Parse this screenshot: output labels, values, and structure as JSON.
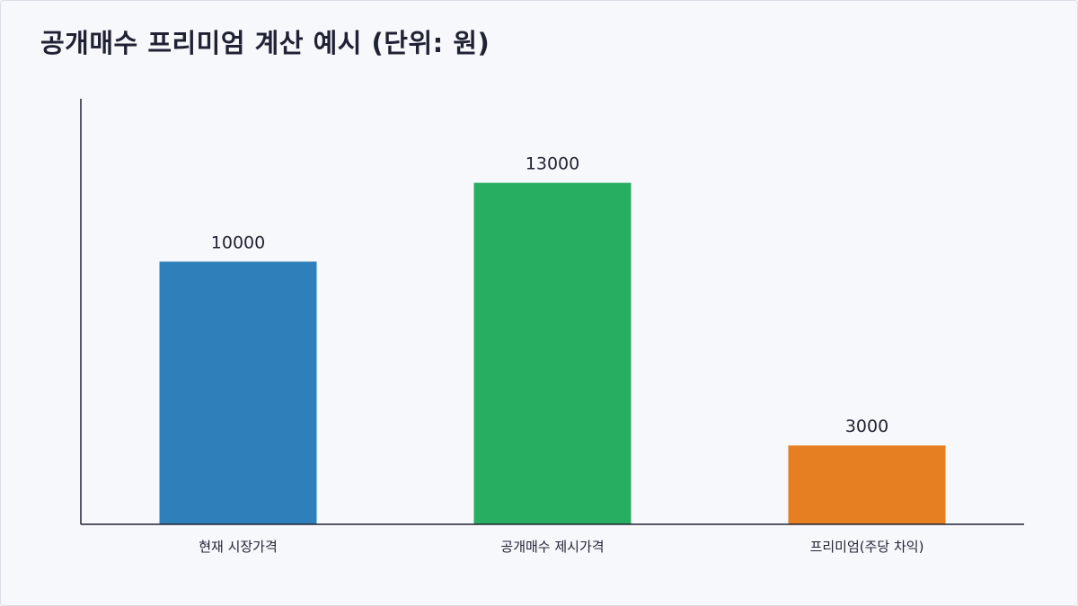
{
  "chart_data": {
    "type": "bar",
    "title": "공개매수 프리미엄 계산 예시 (단위: 원)",
    "categories": [
      "현재 시장가격",
      "공개매수 제시가격",
      "프리미엄(주당 차익)"
    ],
    "values": [
      10000,
      13000,
      3000
    ],
    "colors": [
      "#2f80ba",
      "#27ae60",
      "#e67e22"
    ],
    "ylim": [
      0,
      16200
    ],
    "xlabel": "",
    "ylabel": "",
    "grid": false,
    "legend": "none"
  }
}
